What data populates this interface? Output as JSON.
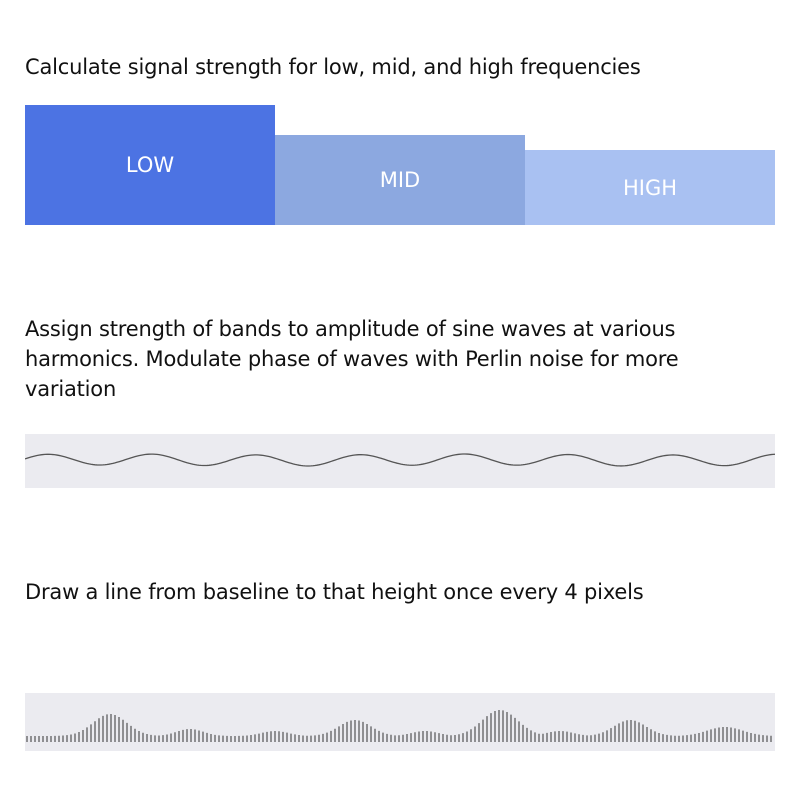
{
  "steps": [
    {
      "caption": "Calculate signal strength for low, mid, and high frequencies"
    },
    {
      "caption": "Assign strength of bands to amplitude of sine waves at various harmonics. Modulate phase of waves with Perlin noise for more variation"
    },
    {
      "caption": "Draw a line from baseline to that height once every 4 pixels"
    }
  ],
  "bands": [
    {
      "label": "LOW",
      "strength": 1.0,
      "color": "#4c73e3"
    },
    {
      "label": "MID",
      "strength": 0.75,
      "color": "#8ca8e0"
    },
    {
      "label": "HIGH",
      "strength": 0.625,
      "color": "#a9c1f2"
    }
  ],
  "colors": {
    "panel_background": "#ebebf0",
    "wave_stroke": "#555555",
    "bar_stroke": "#333333"
  }
}
